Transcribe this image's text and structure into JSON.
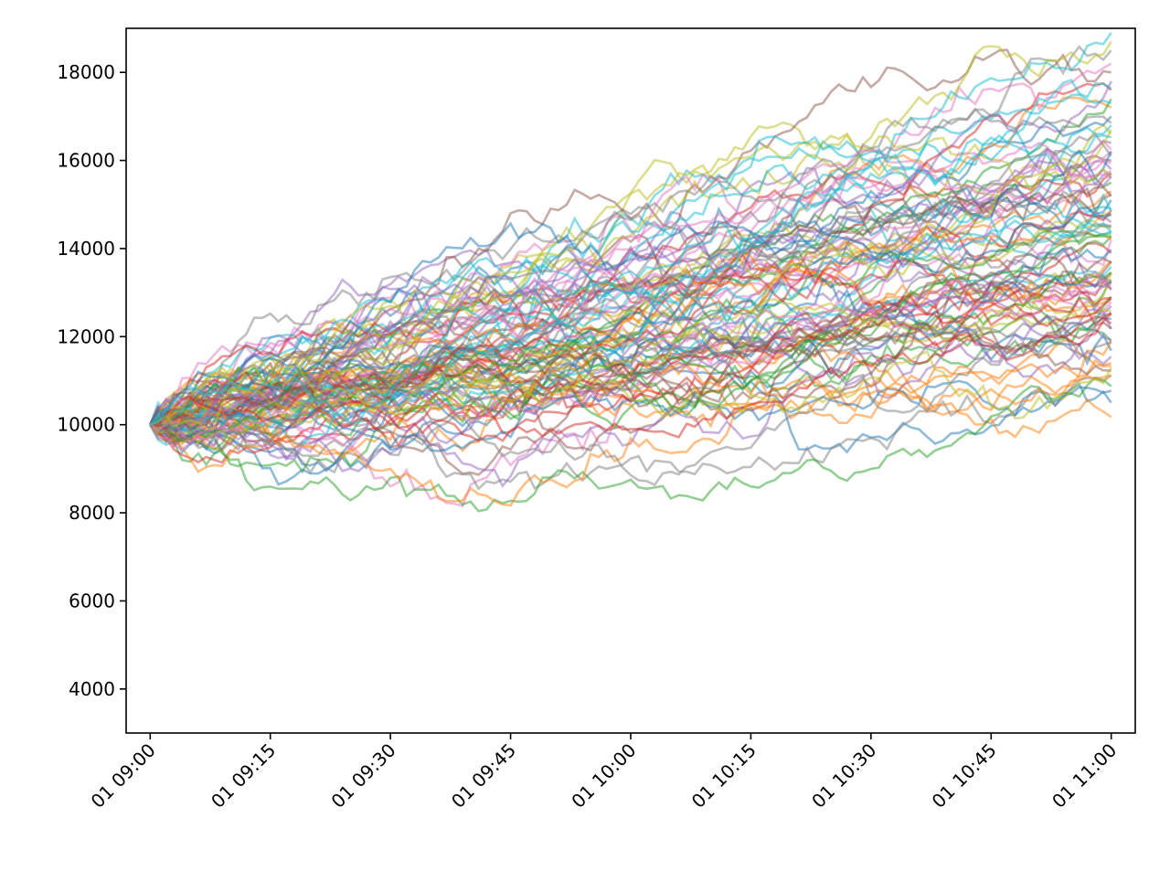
{
  "chart_data": {
    "type": "line",
    "title": "",
    "xlabel": "",
    "ylabel": "",
    "x_start": "01 09:00",
    "x_end": "01 11:00",
    "x_step_minutes": 1,
    "xlim": [
      "01 08:57",
      "01 11:03"
    ],
    "ylim": [
      3000,
      19000
    ],
    "xticks": [
      "01 09:00",
      "01 09:15",
      "01 09:30",
      "01 09:45",
      "01 10:00",
      "01 10:15",
      "01 10:30",
      "01 10:45",
      "01 11:00"
    ],
    "yticks": [
      4000,
      6000,
      8000,
      10000,
      12000,
      14000,
      16000,
      18000
    ],
    "grid": false,
    "legend": "none",
    "line_opacity": 0.5,
    "series_count": 100,
    "series_start_value": 10000,
    "series_end_values": [
      10500,
      11400,
      11900,
      12300,
      12700,
      13700,
      14200,
      14500,
      14800,
      14900,
      15100,
      15300,
      15500,
      15700,
      15800,
      16000,
      16200,
      16400,
      16600,
      16800,
      17000,
      17200,
      17400,
      17600,
      17800,
      18000,
      18200,
      18500,
      18700,
      18900,
      12400,
      12900,
      13300,
      13900,
      14600,
      15200,
      15600,
      16100,
      16700,
      17300
    ],
    "series_peak_values": [
      19200,
      19000,
      18800,
      18500
    ],
    "series_min_values": [
      8300,
      8400,
      8400,
      8600,
      8900
    ],
    "palette": [
      "#1f77b4",
      "#ff7f0e",
      "#2ca02c",
      "#d62728",
      "#9467bd",
      "#8c564b",
      "#e377c2",
      "#7f7f7f",
      "#bcbd22",
      "#17becf"
    ]
  }
}
